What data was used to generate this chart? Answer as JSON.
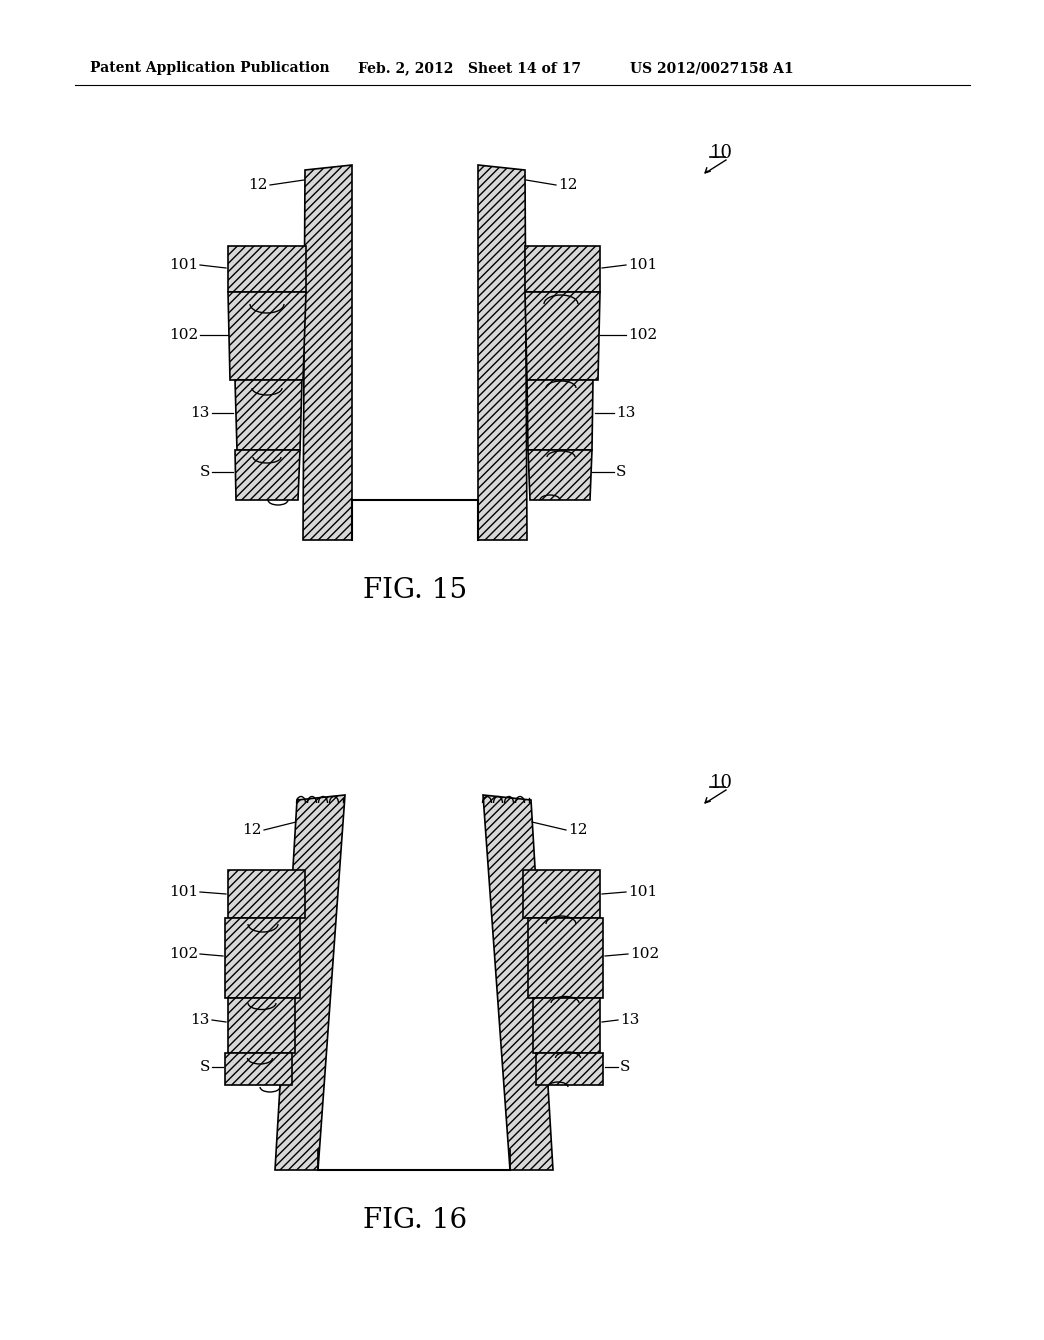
{
  "header_left": "Patent Application Publication",
  "header_mid": "Feb. 2, 2012   Sheet 14 of 17",
  "header_right": "US 2012/0027158 A1",
  "fig15_caption": "FIG. 15",
  "fig16_caption": "FIG. 16",
  "bg_color": "#ffffff",
  "line_color": "#000000"
}
